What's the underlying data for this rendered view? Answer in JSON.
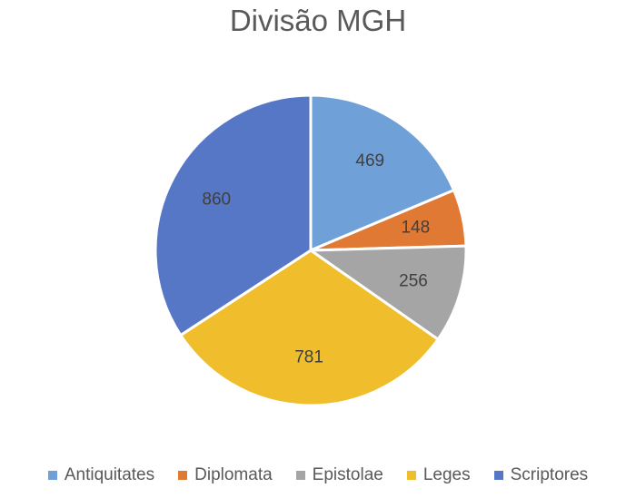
{
  "chart_data": {
    "type": "pie",
    "title": "Divisão MGH",
    "categories": [
      "Antiquitates",
      "Diplomata",
      "Epistolae",
      "Leges",
      "Scriptores"
    ],
    "values": [
      469,
      148,
      256,
      781,
      860
    ],
    "colors": [
      "#70a0d8",
      "#e07934",
      "#a5a5a5",
      "#f0be2c",
      "#5676c6"
    ],
    "data_labels": true,
    "legend_position": "bottom"
  }
}
